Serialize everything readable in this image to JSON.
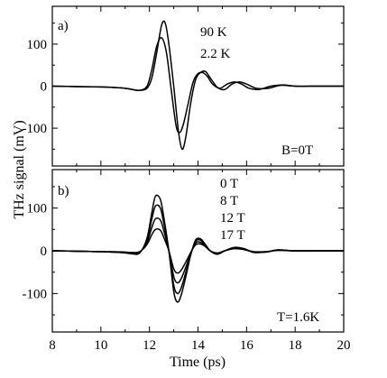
{
  "chart_data": [
    {
      "type": "line",
      "panel_label": "a)",
      "annotation": "B=0T",
      "legend_labels": [
        "90 K",
        "2.2 K"
      ],
      "xlim": [
        8,
        20
      ],
      "ylim": [
        -190,
        190
      ],
      "x_ticks": [
        8,
        10,
        12,
        14,
        16,
        18,
        20
      ],
      "y_ticks": [
        -100,
        0,
        100
      ],
      "y_tick_labels": [
        "-100",
        "0",
        "100"
      ],
      "x_tick_labels_shown": false,
      "series": [
        {
          "x": [
            8.0,
            9.0,
            10.0,
            10.5,
            11.0,
            11.3,
            11.6,
            11.9,
            12.1,
            12.3,
            12.5,
            12.7,
            12.9,
            13.1,
            13.25,
            13.4,
            13.6,
            13.8,
            14.0,
            14.2,
            14.4,
            14.6,
            14.9,
            15.2,
            15.5,
            15.8,
            16.1,
            16.5,
            17.0,
            17.5,
            18.0,
            19.0,
            20.0
          ],
          "values": [
            0,
            -1,
            -2,
            -3,
            -5,
            -8,
            -10,
            0,
            40,
            95,
            115,
            80,
            -10,
            -95,
            -110,
            -90,
            -40,
            10,
            30,
            32,
            22,
            5,
            -5,
            5,
            10,
            5,
            -5,
            -8,
            0,
            3,
            0,
            0,
            0
          ]
        },
        {
          "x": [
            8.0,
            9.0,
            10.0,
            10.5,
            11.0,
            11.3,
            11.6,
            11.9,
            12.1,
            12.3,
            12.5,
            12.65,
            12.8,
            13.0,
            13.2,
            13.35,
            13.5,
            13.7,
            13.9,
            14.1,
            14.3,
            14.5,
            14.8,
            15.1,
            15.4,
            15.7,
            16.0,
            16.4,
            16.9,
            17.4,
            18.0,
            19.0,
            20.0
          ],
          "values": [
            0,
            -1,
            -2,
            -3,
            -5,
            -8,
            -10,
            -5,
            20,
            80,
            145,
            150,
            100,
            0,
            -110,
            -150,
            -120,
            -40,
            15,
            32,
            35,
            20,
            -3,
            -8,
            5,
            10,
            5,
            -5,
            -5,
            2,
            0,
            0,
            0
          ]
        }
      ]
    },
    {
      "type": "line",
      "panel_label": "b)",
      "annotation": "T=1.6K",
      "legend_labels": [
        "0 T",
        "8 T",
        "12 T",
        "17 T"
      ],
      "xlabel": "Time (ps)",
      "xlim": [
        8,
        20
      ],
      "ylim": [
        -190,
        190
      ],
      "x_ticks": [
        8,
        10,
        12,
        14,
        16,
        18,
        20
      ],
      "x_tick_labels": [
        "8",
        "10",
        "12",
        "14",
        "16",
        "18",
        "20"
      ],
      "y_ticks": [
        -100,
        0,
        100
      ],
      "y_tick_labels": [
        "-100",
        "0",
        "100"
      ],
      "series": [
        {
          "x": [
            8.0,
            9.0,
            10.0,
            10.5,
            11.0,
            11.3,
            11.6,
            11.9,
            12.1,
            12.25,
            12.45,
            12.6,
            12.8,
            13.0,
            13.15,
            13.3,
            13.5,
            13.7,
            13.9,
            14.1,
            14.3,
            14.5,
            14.8,
            15.1,
            15.5,
            15.9,
            16.3,
            16.8,
            17.3,
            18.0,
            19.0,
            20.0
          ],
          "values": [
            0,
            -1,
            -2,
            -3,
            -5,
            -7,
            -5,
            30,
            90,
            128,
            120,
            75,
            0,
            -95,
            -120,
            -105,
            -60,
            -10,
            25,
            28,
            15,
            0,
            -8,
            0,
            8,
            5,
            -4,
            -3,
            2,
            0,
            0,
            0
          ]
        },
        {
          "x": [
            8.0,
            9.0,
            10.0,
            10.5,
            11.0,
            11.3,
            11.6,
            11.9,
            12.1,
            12.25,
            12.45,
            12.6,
            12.8,
            13.0,
            13.15,
            13.3,
            13.5,
            13.7,
            13.9,
            14.1,
            14.3,
            14.5,
            14.8,
            15.1,
            15.5,
            15.9,
            16.3,
            16.8,
            17.3,
            18.0,
            19.0,
            20.0
          ],
          "values": [
            0,
            -1,
            -2,
            -3,
            -4,
            -6,
            -4,
            25,
            75,
            105,
            100,
            62,
            0,
            -80,
            -100,
            -88,
            -50,
            -8,
            22,
            25,
            14,
            0,
            -7,
            0,
            7,
            4,
            -3,
            -3,
            2,
            0,
            0,
            0
          ]
        },
        {
          "x": [
            8.0,
            9.0,
            10.0,
            10.5,
            11.0,
            11.3,
            11.6,
            11.9,
            12.1,
            12.25,
            12.45,
            12.6,
            12.8,
            13.0,
            13.15,
            13.3,
            13.5,
            13.7,
            13.9,
            14.1,
            14.3,
            14.5,
            14.8,
            15.1,
            15.5,
            15.9,
            16.3,
            16.8,
            17.3,
            18.0,
            19.0,
            20.0
          ],
          "values": [
            0,
            -1,
            -2,
            -3,
            -4,
            -5,
            -3,
            20,
            55,
            75,
            72,
            45,
            0,
            -60,
            -75,
            -66,
            -38,
            -6,
            18,
            20,
            12,
            0,
            -6,
            0,
            6,
            3,
            -3,
            -2,
            1,
            0,
            0,
            0
          ]
        },
        {
          "x": [
            8.0,
            9.0,
            10.0,
            10.5,
            11.0,
            11.3,
            11.6,
            11.9,
            12.1,
            12.25,
            12.45,
            12.6,
            12.8,
            13.0,
            13.15,
            13.3,
            13.5,
            13.7,
            13.9,
            14.1,
            14.3,
            14.5,
            14.8,
            15.1,
            15.5,
            15.9,
            16.3,
            16.8,
            17.3,
            18.0,
            19.0,
            20.0
          ],
          "values": [
            0,
            -1,
            -2,
            -2,
            -3,
            -4,
            -2,
            15,
            38,
            50,
            48,
            30,
            0,
            -42,
            -52,
            -46,
            -26,
            -4,
            14,
            16,
            10,
            0,
            -5,
            0,
            5,
            3,
            -2,
            -2,
            1,
            0,
            0,
            0
          ]
        }
      ]
    }
  ],
  "shared": {
    "ylabel": "THz signal (mV)"
  }
}
